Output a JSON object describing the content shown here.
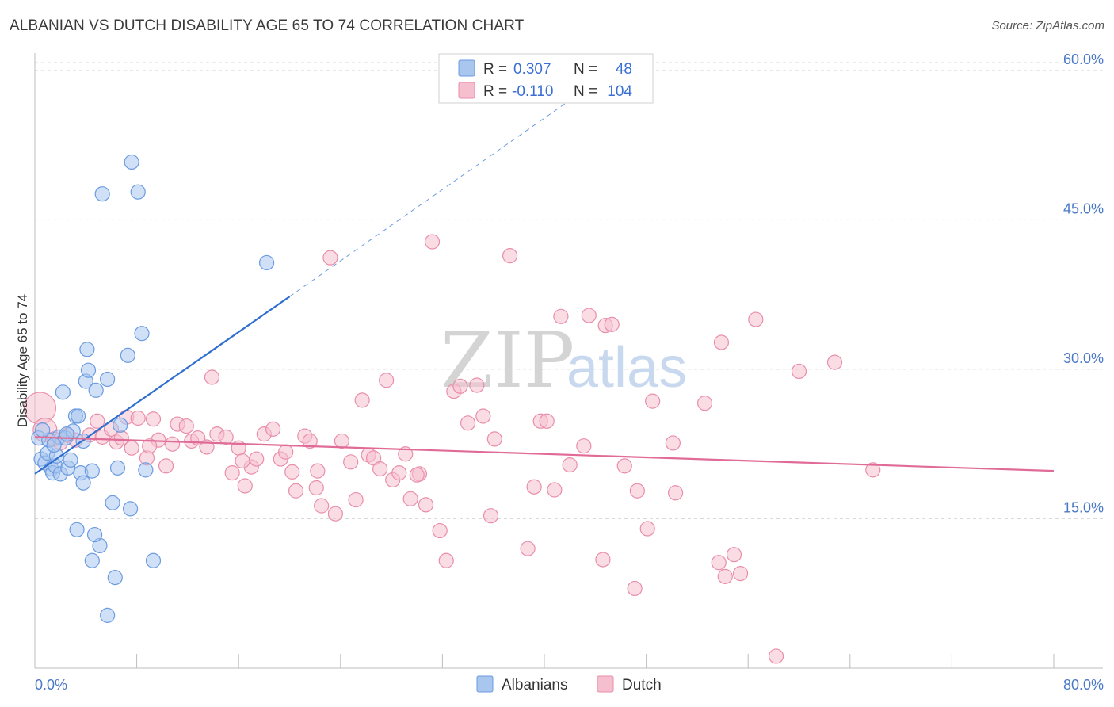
{
  "title": "ALBANIAN VS DUTCH DISABILITY AGE 65 TO 74 CORRELATION CHART",
  "source": "Source: ZipAtlas.com",
  "watermark": {
    "part1": "ZIP",
    "part2": "atlas"
  },
  "colors": {
    "albanians_fill": "#a9c6ef",
    "albanians_stroke": "#6b9be0",
    "albanians_line": "#2f6fcf",
    "dutch_fill": "#f6bfd0",
    "dutch_stroke": "#e98eaa",
    "dutch_line": "#e06b96",
    "grid": "#d9d9d9",
    "tick_label": "#4a78c8"
  },
  "legend": {
    "rows": [
      {
        "r_label": "R =",
        "r_value": "0.307",
        "n_label": "N =",
        "n_value": "48"
      },
      {
        "r_label": "R =",
        "r_value": "-0.110",
        "n_label": "N =",
        "n_value": "104"
      }
    ]
  },
  "chart_data": {
    "type": "scatter",
    "xlabel": "",
    "ylabel": "Disability Age 65 to 74",
    "xlim": [
      0,
      80
    ],
    "ylim": [
      0,
      61.5
    ],
    "x_tick_labels": [
      "0.0%",
      "80.0%"
    ],
    "y_ticks": [
      15,
      30,
      45,
      60
    ],
    "y_tick_labels": [
      "15.0%",
      "30.0%",
      "45.0%",
      "60.0%"
    ],
    "grid": true,
    "legend_position": "top-center",
    "series": [
      {
        "name": "Albanians",
        "r": 0.307,
        "n": 48,
        "trend": {
          "x0": 0,
          "y0": 19.5,
          "x1": 20,
          "y1": 37.3,
          "dashed_to_x": 42,
          "dashed_to_y": 57
        },
        "points": [
          [
            0.3,
            23.1
          ],
          [
            0.5,
            21.0
          ],
          [
            0.8,
            20.6
          ],
          [
            1.0,
            21.6
          ],
          [
            1.1,
            22.9
          ],
          [
            1.3,
            20.0
          ],
          [
            1.4,
            19.6
          ],
          [
            1.6,
            20.3
          ],
          [
            1.7,
            21.3
          ],
          [
            1.9,
            23.2
          ],
          [
            2.0,
            19.5
          ],
          [
            2.2,
            27.7
          ],
          [
            2.4,
            23.1
          ],
          [
            2.6,
            20.1
          ],
          [
            2.8,
            20.9
          ],
          [
            3.0,
            23.8
          ],
          [
            3.2,
            25.3
          ],
          [
            3.4,
            25.3
          ],
          [
            3.6,
            19.6
          ],
          [
            3.8,
            18.6
          ],
          [
            4.1,
            32.0
          ],
          [
            4.0,
            28.8
          ],
          [
            4.2,
            29.9
          ],
          [
            4.5,
            19.8
          ],
          [
            4.8,
            27.9
          ],
          [
            5.1,
            12.3
          ],
          [
            5.3,
            47.6
          ],
          [
            5.7,
            29.0
          ],
          [
            6.1,
            16.6
          ],
          [
            6.3,
            9.1
          ],
          [
            6.5,
            20.1
          ],
          [
            6.7,
            24.4
          ],
          [
            7.3,
            31.4
          ],
          [
            7.6,
            50.8
          ],
          [
            8.1,
            47.8
          ],
          [
            8.4,
            33.6
          ],
          [
            8.7,
            19.9
          ],
          [
            9.3,
            10.8
          ],
          [
            5.7,
            5.3
          ],
          [
            4.5,
            10.8
          ],
          [
            3.3,
            13.9
          ],
          [
            7.5,
            16.0
          ],
          [
            4.7,
            13.4
          ],
          [
            18.2,
            40.7
          ],
          [
            2.5,
            23.5
          ],
          [
            0.6,
            23.9
          ],
          [
            3.8,
            22.8
          ],
          [
            1.5,
            22.4
          ]
        ]
      },
      {
        "name": "Dutch",
        "r": -0.11,
        "n": 104,
        "trend": {
          "x0": 0,
          "y0": 23.2,
          "x1": 80,
          "y1": 19.8
        },
        "points": [
          [
            0.4,
            26.1
          ],
          [
            0.8,
            23.9
          ],
          [
            1.5,
            23.0
          ],
          [
            2.0,
            22.6
          ],
          [
            2.6,
            23.4
          ],
          [
            3.2,
            22.9
          ],
          [
            4.3,
            23.4
          ],
          [
            4.9,
            24.8
          ],
          [
            5.3,
            23.2
          ],
          [
            6.0,
            24.0
          ],
          [
            6.4,
            22.7
          ],
          [
            6.8,
            23.1
          ],
          [
            7.2,
            25.2
          ],
          [
            7.6,
            22.1
          ],
          [
            8.1,
            25.1
          ],
          [
            8.8,
            21.1
          ],
          [
            9.3,
            25.0
          ],
          [
            9.7,
            22.9
          ],
          [
            10.3,
            20.3
          ],
          [
            10.8,
            22.5
          ],
          [
            11.2,
            24.5
          ],
          [
            11.9,
            24.3
          ],
          [
            12.3,
            22.8
          ],
          [
            12.8,
            23.1
          ],
          [
            13.5,
            22.2
          ],
          [
            13.9,
            29.2
          ],
          [
            14.3,
            23.5
          ],
          [
            15.0,
            23.2
          ],
          [
            15.5,
            19.6
          ],
          [
            16.0,
            22.1
          ],
          [
            16.5,
            18.3
          ],
          [
            17.0,
            20.2
          ],
          [
            17.4,
            21.0
          ],
          [
            18.0,
            23.5
          ],
          [
            18.7,
            24.0
          ],
          [
            19.3,
            21.0
          ],
          [
            19.7,
            21.7
          ],
          [
            20.2,
            19.7
          ],
          [
            20.5,
            17.8
          ],
          [
            21.2,
            23.3
          ],
          [
            21.6,
            22.8
          ],
          [
            22.1,
            18.1
          ],
          [
            22.5,
            16.3
          ],
          [
            23.2,
            41.2
          ],
          [
            23.6,
            15.5
          ],
          [
            24.1,
            22.8
          ],
          [
            24.8,
            20.7
          ],
          [
            25.2,
            16.9
          ],
          [
            25.7,
            26.9
          ],
          [
            26.2,
            21.4
          ],
          [
            26.6,
            21.1
          ],
          [
            27.1,
            20.0
          ],
          [
            27.6,
            28.9
          ],
          [
            28.1,
            18.9
          ],
          [
            28.6,
            19.6
          ],
          [
            29.1,
            21.5
          ],
          [
            29.5,
            17.0
          ],
          [
            30.2,
            19.5
          ],
          [
            30.7,
            16.4
          ],
          [
            31.2,
            42.8
          ],
          [
            31.8,
            13.8
          ],
          [
            32.3,
            10.8
          ],
          [
            32.9,
            27.8
          ],
          [
            33.4,
            28.3
          ],
          [
            34.0,
            24.6
          ],
          [
            34.7,
            28.4
          ],
          [
            35.2,
            25.3
          ],
          [
            35.8,
            15.3
          ],
          [
            36.1,
            23.0
          ],
          [
            37.3,
            41.4
          ],
          [
            38.7,
            12.0
          ],
          [
            39.2,
            18.2
          ],
          [
            39.7,
            24.8
          ],
          [
            40.2,
            24.8
          ],
          [
            40.8,
            17.9
          ],
          [
            41.3,
            35.3
          ],
          [
            42.0,
            20.4
          ],
          [
            43.1,
            22.3
          ],
          [
            43.5,
            35.4
          ],
          [
            44.6,
            10.9
          ],
          [
            44.8,
            34.4
          ],
          [
            45.3,
            34.5
          ],
          [
            46.3,
            20.3
          ],
          [
            47.1,
            8.0
          ],
          [
            47.3,
            17.8
          ],
          [
            48.1,
            14.0
          ],
          [
            48.5,
            26.8
          ],
          [
            50.3,
            17.6
          ],
          [
            50.1,
            22.6
          ],
          [
            52.6,
            26.6
          ],
          [
            53.7,
            10.6
          ],
          [
            53.9,
            32.7
          ],
          [
            54.2,
            9.2
          ],
          [
            54.9,
            11.4
          ],
          [
            55.4,
            9.5
          ],
          [
            56.6,
            35.0
          ],
          [
            58.2,
            1.2
          ],
          [
            60.0,
            29.8
          ],
          [
            62.8,
            30.7
          ],
          [
            65.8,
            19.9
          ],
          [
            30.0,
            19.4
          ],
          [
            22.2,
            19.8
          ],
          [
            16.3,
            20.8
          ],
          [
            9.0,
            22.3
          ]
        ]
      }
    ]
  },
  "bottom_legend": {
    "items": [
      "Albanians",
      "Dutch"
    ]
  }
}
